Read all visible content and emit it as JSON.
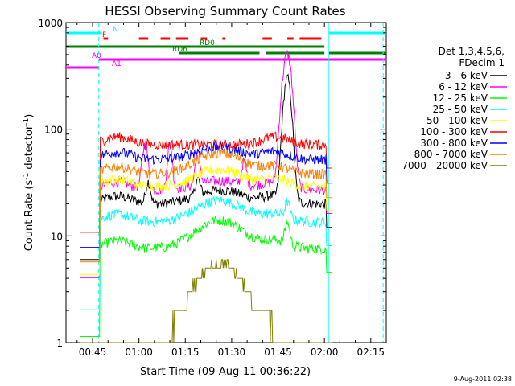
{
  "chart_data": {
    "type": "line",
    "title": "HESSI Observing Summary Count Rates",
    "xlabel": "Start Time (09-Aug-11 00:36:22)",
    "ylabel": "Count Rate (s⁻¹ detector⁻¹)",
    "y_scale": "log",
    "ylim": [
      1,
      1000
    ],
    "xlim_minutes": [
      36.4,
      140
    ],
    "x_ticks": [
      {
        "label": "00:45",
        "minutes": 45
      },
      {
        "label": "01:00",
        "minutes": 60
      },
      {
        "label": "01:15",
        "minutes": 75
      },
      {
        "label": "01:30",
        "minutes": 90
      },
      {
        "label": "01:45",
        "minutes": 105
      },
      {
        "label": "02:00",
        "minutes": 120
      },
      {
        "label": "02:15",
        "minutes": 135
      }
    ],
    "y_ticks": [
      {
        "label": "1",
        "value": 1
      },
      {
        "label": "10",
        "value": 10
      },
      {
        "label": "100",
        "value": 100
      },
      {
        "label": "1000",
        "value": 1000
      }
    ],
    "legend_header": [
      "Det 1,3,4,5,6,",
      "FDecim 1"
    ],
    "legend_position": "right",
    "series": [
      {
        "name": "3 - 6 keV",
        "color": "#000000",
        "base": 20,
        "bump": 7,
        "spikes": [
          [
            63,
            12,
            1
          ],
          [
            79,
            10,
            1
          ],
          [
            108,
            280,
            1.6
          ]
        ]
      },
      {
        "name": "6 - 12 keV",
        "color": "#ff00ff",
        "base": 27,
        "bump": 6,
        "spikes": [
          [
            62,
            45,
            1.2
          ],
          [
            70,
            45,
            1
          ],
          [
            79,
            30,
            1
          ],
          [
            94,
            20,
            1
          ],
          [
            106,
            40,
            1.1
          ],
          [
            108,
            480,
            1.8
          ]
        ]
      },
      {
        "name": "12 - 25 keV",
        "color": "#00ff00",
        "base": 7.6,
        "bump": 6.5,
        "spikes": [
          [
            108,
            5,
            1
          ]
        ]
      },
      {
        "name": "25 - 50 keV",
        "color": "#00ffff",
        "base": 13.5,
        "bump": 8,
        "spikes": [
          [
            108,
            6,
            1
          ]
        ]
      },
      {
        "name": "50 - 100 keV",
        "color": "#ffff00",
        "base": 29,
        "bump": 13,
        "spikes": []
      },
      {
        "name": "100 - 300 keV",
        "color": "#ff0000",
        "base": 72,
        "bump": 0,
        "spikes": []
      },
      {
        "name": "300 - 800 keV",
        "color": "#0000ff",
        "base": 52,
        "bump": 16,
        "spikes": []
      },
      {
        "name": "800 - 7000 keV",
        "color": "#ff8000",
        "base": 38,
        "bump": 22,
        "spikes": []
      },
      {
        "name": "7000 - 20000 keV",
        "color": "#808000",
        "base": 1,
        "bump": 4.5,
        "spikes": []
      }
    ],
    "flags": [
      {
        "label": "N",
        "color": "#00ffff",
        "segments": [
          [
            36.4,
            48
          ],
          [
            121.5,
            140
          ]
        ]
      },
      {
        "label": "F",
        "color": "#ff0000",
        "segments": [
          [
            48.5,
            50
          ],
          [
            60,
            63
          ],
          [
            67,
            70
          ],
          [
            72,
            76
          ],
          [
            80,
            82
          ],
          [
            87,
            88
          ],
          [
            100,
            103
          ],
          [
            108,
            110
          ],
          [
            112,
            119
          ]
        ]
      },
      {
        "label": "RD0",
        "color": "#008000",
        "segments": [
          [
            36.4,
            120
          ]
        ]
      },
      {
        "label": "RD6",
        "color": "#008000",
        "segments": [
          [
            73,
            99
          ],
          [
            101,
            120
          ],
          [
            121.5,
            140
          ]
        ]
      },
      {
        "label": "A0",
        "color": "#ff00ff",
        "segments": [
          [
            47,
            140
          ]
        ]
      },
      {
        "label": "A1",
        "color": "#ff00ff",
        "segments": [
          [
            36.4,
            47
          ]
        ]
      }
    ],
    "dashed_vlines_minutes": [
      [
        47,
        "#00ffff"
      ],
      [
        139,
        "#00ffff"
      ]
    ],
    "solid_vlines_minutes": [
      [
        121.3,
        "#00ffff"
      ]
    ],
    "date_stamp": "9-Aug-2011 02:38"
  }
}
